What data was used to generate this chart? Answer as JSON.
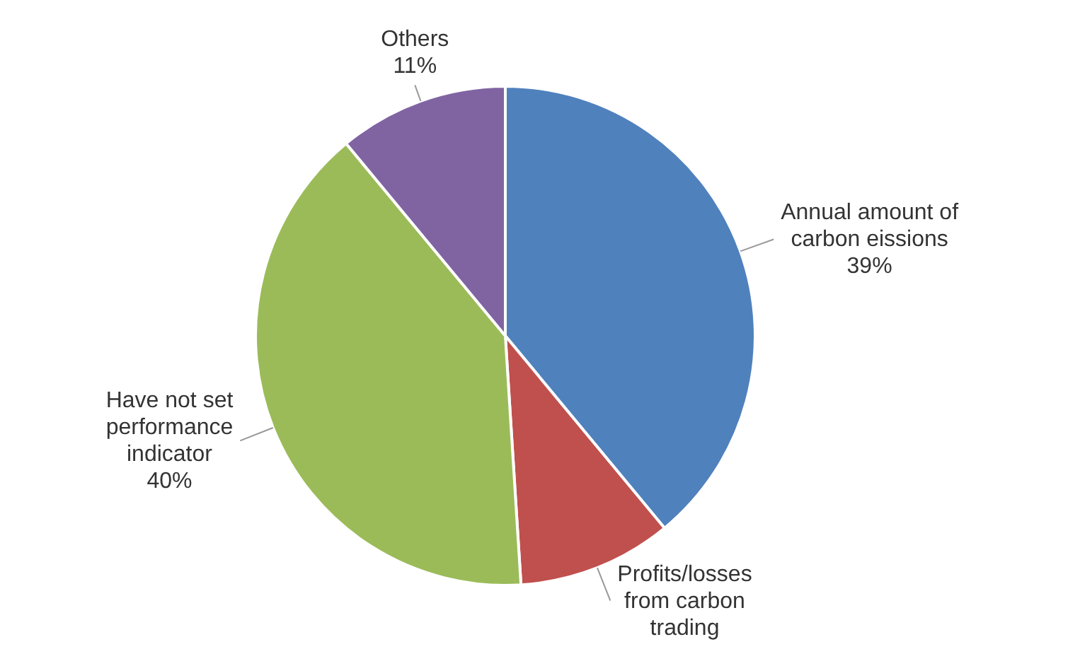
{
  "chart_data": {
    "type": "pie",
    "categories": [
      "Annual amount of carbon eissions",
      "Profits/losses from carbon trading",
      "Have not set performance indicator",
      "Others"
    ],
    "values": [
      39,
      10,
      40,
      11
    ],
    "colors": [
      "#4f81bd",
      "#c0504d",
      "#9bbb59",
      "#8064a2"
    ],
    "value_labels": [
      "39%",
      null,
      "40%",
      "11%"
    ],
    "legend": false
  }
}
